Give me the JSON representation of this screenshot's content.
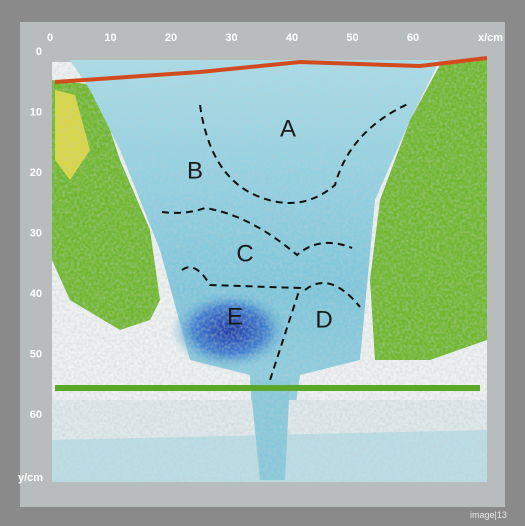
{
  "x_axis": {
    "label": "x/cm",
    "ticks": [
      0,
      10,
      20,
      30,
      40,
      50,
      60
    ]
  },
  "y_axis": {
    "label": "y/cm",
    "ticks": [
      0,
      10,
      20,
      30,
      40,
      50,
      60
    ]
  },
  "regions": [
    "A",
    "B",
    "C",
    "D",
    "E"
  ],
  "watermark": "image|13"
}
